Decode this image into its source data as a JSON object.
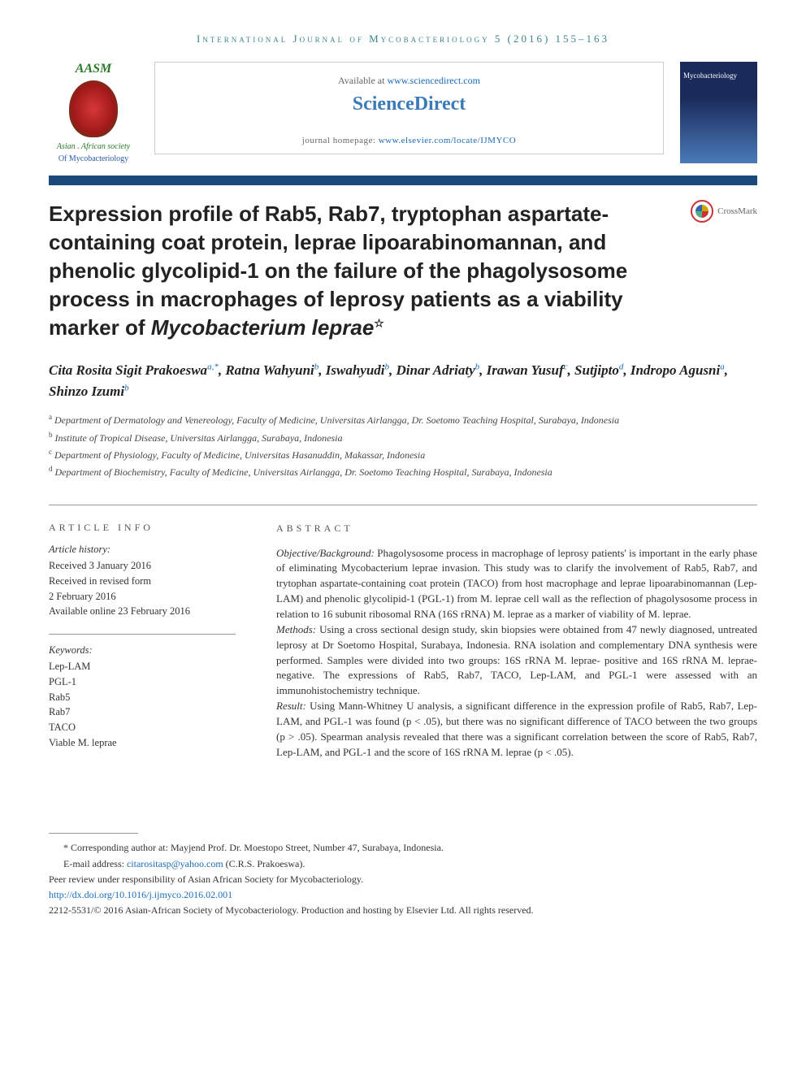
{
  "journal_header": "International Journal of Mycobacteriology 5 (2016) 155–163",
  "top": {
    "society": {
      "acronym": "AASM",
      "name_line1": "Asian . African society",
      "name_line2": "Of Mycobacteriology"
    },
    "available_text": "Available at ",
    "available_url": "www.sciencedirect.com",
    "brand": "ScienceDirect",
    "homepage_label": "journal homepage: ",
    "homepage_url": "www.elsevier.com/locate/IJMYCO",
    "cover_title": "Mycobacteriology",
    "crossmark": "CrossMark"
  },
  "title": {
    "main": "Expression profile of Rab5, Rab7, tryptophan aspartate-containing coat protein, leprae lipoarabinomannan, and phenolic glycolipid-1 on the failure of the phagolysosome process in macrophages of leprosy patients as a viability marker of ",
    "italic_part": "Mycobacterium leprae",
    "star": "☆"
  },
  "authors": [
    {
      "name": "Cita Rosita Sigit Prakoeswa",
      "sup": "a,*"
    },
    {
      "name": "Ratna Wahyuni",
      "sup": "b"
    },
    {
      "name": "Iswahyudi",
      "sup": "b"
    },
    {
      "name": "Dinar Adriaty",
      "sup": "b"
    },
    {
      "name": "Irawan Yusuf",
      "sup": "c"
    },
    {
      "name": "Sutjipto",
      "sup": "d"
    },
    {
      "name": "Indropo Agusni",
      "sup": "a"
    },
    {
      "name": "Shinzo Izumi",
      "sup": "b"
    }
  ],
  "affiliations": [
    {
      "sup": "a",
      "text": "Department of Dermatology and Venereology, Faculty of Medicine, Universitas Airlangga, Dr. Soetomo Teaching Hospital, Surabaya, Indonesia"
    },
    {
      "sup": "b",
      "text": "Institute of Tropical Disease, Universitas Airlangga, Surabaya, Indonesia"
    },
    {
      "sup": "c",
      "text": "Department of Physiology, Faculty of Medicine, Universitas Hasanuddin, Makassar, Indonesia"
    },
    {
      "sup": "d",
      "text": "Department of Biochemistry, Faculty of Medicine, Universitas Airlangga, Dr. Soetomo Teaching Hospital, Surabaya, Indonesia"
    }
  ],
  "article_info": {
    "heading": "ARTICLE INFO",
    "history_label": "Article history:",
    "history": [
      "Received 3 January 2016",
      "Received in revised form",
      "2 February 2016",
      "Available online 23 February 2016"
    ],
    "keywords_label": "Keywords:",
    "keywords": [
      "Lep-LAM",
      "PGL-1",
      "Rab5",
      "Rab7",
      "TACO",
      "Viable M. leprae"
    ]
  },
  "abstract": {
    "heading": "ABSTRACT",
    "objective_label": "Objective/Background:",
    "objective": " Phagolysosome process in macrophage of leprosy patients' is important in the early phase of eliminating Mycobacterium leprae invasion. This study was to clarify the involvement of Rab5, Rab7, and trytophan aspartate-containing coat protein (TACO) from host macrophage and leprae lipoarabinomannan (Lep-LAM) and phenolic glycolipid-1 (PGL-1) from M. leprae cell wall as the reflection of phagolysosome process in relation to 16 subunit ribosomal RNA (16S rRNA) M. leprae as a marker of viability of M. leprae.",
    "methods_label": "Methods:",
    "methods": " Using a cross sectional design study, skin biopsies were obtained from 47 newly diagnosed, untreated leprosy at Dr Soetomo Hospital, Surabaya, Indonesia. RNA isolation and complementary DNA synthesis were performed. Samples were divided into two groups: 16S rRNA M. leprae- positive and 16S rRNA M. leprae-negative. The expressions of Rab5, Rab7, TACO, Lep-LAM, and PGL-1 were assessed with an immunohistochemistry technique.",
    "result_label": "Result:",
    "result": " Using Mann-Whitney U analysis, a significant difference in the expression profile of Rab5, Rab7, Lep-LAM, and PGL-1 was found (p < .05), but there was no significant difference of TACO between the two groups (p > .05). Spearman analysis revealed that there was a significant correlation between the score of Rab5, Rab7, Lep-LAM, and PGL-1 and the score of 16S rRNA M. leprae (p < .05)."
  },
  "footer": {
    "corresponding": "* Corresponding author at: Mayjend Prof. Dr. Moestopo Street, Number 47, Surabaya, Indonesia.",
    "email_label": "E-mail address: ",
    "email": "citarositasp@yahoo.com",
    "email_suffix": " (C.R.S. Prakoeswa).",
    "peer_review": "Peer review under responsibility of Asian African Society for Mycobacteriology.",
    "doi": "http://dx.doi.org/10.1016/j.ijmyco.2016.02.001",
    "copyright": "2212-5531/© 2016 Asian-African Society of Mycobacteriology. Production and hosting by Elsevier Ltd. All rights reserved."
  },
  "colors": {
    "link": "#1a6bb8",
    "bar": "#1a4a7a",
    "teal": "#3b8686"
  }
}
